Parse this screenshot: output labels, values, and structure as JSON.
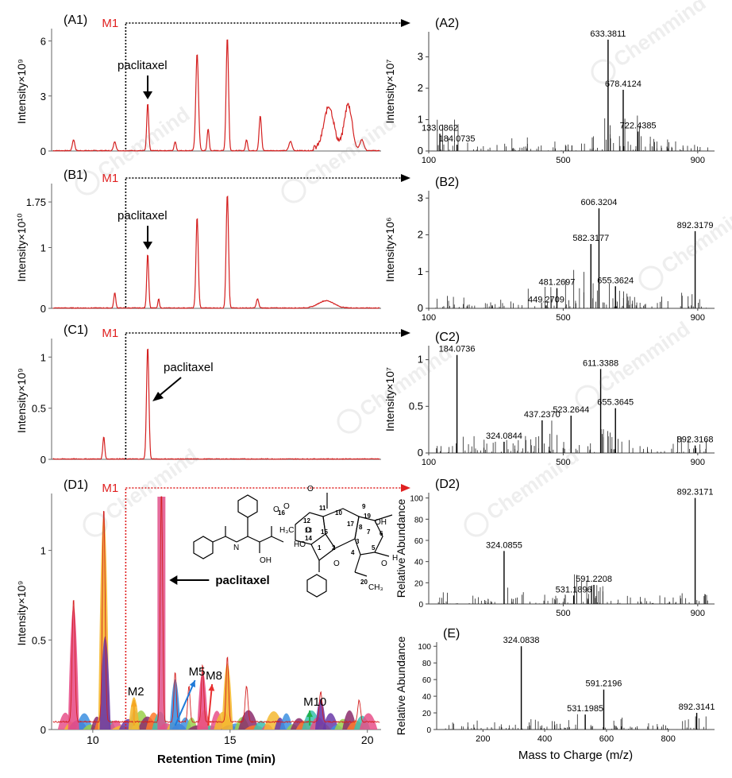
{
  "marker_label": "M1",
  "paclitaxel_label": "paclitaxel",
  "chromatograms": [
    {
      "id": "A1",
      "label": "(A1)",
      "ylabel": "Intensity×10⁹",
      "ylim": [
        0,
        6.5
      ],
      "ticks": [
        0,
        3,
        6
      ],
      "tick_labels": [
        "0",
        "3",
        "6"
      ],
      "color": "#d42020",
      "peaks": [
        [
          9.3,
          0.6,
          0.06
        ],
        [
          10.8,
          0.5,
          0.06
        ],
        [
          12.0,
          2.6,
          0.05
        ],
        [
          13.0,
          0.5,
          0.05
        ],
        [
          13.8,
          5.3,
          0.07
        ],
        [
          14.2,
          1.2,
          0.05
        ],
        [
          14.9,
          6.2,
          0.06
        ],
        [
          15.6,
          0.6,
          0.05
        ],
        [
          16.1,
          1.9,
          0.06
        ],
        [
          17.2,
          0.5,
          0.08
        ],
        [
          18.6,
          2.3,
          0.25
        ],
        [
          19.3,
          2.4,
          0.2
        ],
        [
          19.8,
          0.6,
          0.1
        ]
      ],
      "paclitaxel_rt": 12.0,
      "arrow_style": "down",
      "show_xaxis": false
    },
    {
      "id": "B1",
      "label": "(B1)",
      "ylabel": "Intensity×10¹⁰",
      "ylim": [
        0,
        2
      ],
      "ticks": [
        0,
        1,
        1.75
      ],
      "tick_labels": [
        "0",
        "1",
        "1.75"
      ],
      "color": "#d42020",
      "peaks": [
        [
          10.8,
          0.25,
          0.05
        ],
        [
          12.0,
          0.9,
          0.05
        ],
        [
          12.4,
          0.15,
          0.04
        ],
        [
          13.8,
          1.5,
          0.06
        ],
        [
          14.9,
          1.88,
          0.06
        ],
        [
          16.0,
          0.15,
          0.06
        ],
        [
          18.5,
          0.12,
          0.4
        ]
      ],
      "paclitaxel_rt": 12.0,
      "arrow_style": "down",
      "show_xaxis": false
    },
    {
      "id": "C1",
      "label": "(C1)",
      "ylabel": "Intensity×10⁹",
      "ylim": [
        0,
        1.15
      ],
      "ticks": [
        0,
        0.5,
        1
      ],
      "tick_labels": [
        "0",
        "0.5",
        "1"
      ],
      "color": "#d42020",
      "peaks": [
        [
          10.4,
          0.22,
          0.05
        ],
        [
          12.0,
          1.1,
          0.06
        ]
      ],
      "paclitaxel_rt": 12.0,
      "arrow_style": "diag",
      "show_xaxis": false
    },
    {
      "id": "D1",
      "label": "(D1)",
      "ylabel": "Intensity×10⁹",
      "ylim": [
        0,
        1.3
      ],
      "ticks": [
        0,
        0.5,
        1
      ],
      "tick_labels": [
        "0",
        "0.5",
        "1"
      ],
      "color": "#d42020",
      "peaks": [
        [
          9.3,
          0.69,
          0.07
        ],
        [
          10.4,
          1.2,
          0.07
        ],
        [
          12.5,
          1.3,
          0.06
        ],
        [
          13.0,
          0.28,
          0.06
        ],
        [
          13.5,
          0.2,
          0.06
        ],
        [
          14.0,
          0.32,
          0.06
        ],
        [
          14.9,
          0.37,
          0.06
        ],
        [
          15.6,
          0.2,
          0.07
        ],
        [
          18.3,
          0.17,
          0.07
        ],
        [
          19.7,
          0.12,
          0.07
        ]
      ],
      "paclitaxel_rt": 12.5,
      "arrow_style": "left",
      "show_xaxis": true,
      "xlabel": "Retention Time (min)",
      "xticks": [
        10,
        15,
        20
      ],
      "metabolites": [
        {
          "name": "M2",
          "rt": 11.5,
          "color": "#f5a623"
        },
        {
          "name": "M5",
          "rt": 13.0,
          "color": "#1e7ad8"
        },
        {
          "name": "M8",
          "rt": 14.2,
          "color": "#e83030"
        },
        {
          "name": "M10",
          "rt": 17.9,
          "color": "#20b04a"
        }
      ]
    }
  ],
  "chart_data": [
    {
      "type": "line",
      "panel": "A2",
      "label": "(A2)",
      "ylabel": "Intensity×10⁷",
      "xlim": [
        100,
        950
      ],
      "ylim": [
        0,
        3.8
      ],
      "yticks": [
        0,
        1,
        2,
        3
      ],
      "xticks": [
        100,
        500,
        900
      ],
      "labeled_peaks": [
        {
          "mz": 133.0862,
          "label": "133.0862",
          "y": 0.55
        },
        {
          "mz": 184.0735,
          "label": "184.0735",
          "y": 0.2
        },
        {
          "mz": 633.3811,
          "label": "633.3811",
          "y": 3.55
        },
        {
          "mz": 678.4124,
          "label": "678.4124",
          "y": 1.95
        },
        {
          "mz": 722.4385,
          "label": "722.4385",
          "y": 0.62
        }
      ]
    },
    {
      "type": "line",
      "panel": "B2",
      "label": "(B2)",
      "ylabel": "Intensity×10⁶",
      "xlim": [
        100,
        950
      ],
      "ylim": [
        0,
        3.2
      ],
      "yticks": [
        0,
        1,
        2,
        3
      ],
      "xticks": [
        100,
        500,
        900
      ],
      "labeled_peaks": [
        {
          "mz": 449.2709,
          "label": "449.2709",
          "y": 0.08
        },
        {
          "mz": 481.2697,
          "label": "481.2697",
          "y": 0.55
        },
        {
          "mz": 582.3177,
          "label": "582.3177",
          "y": 1.75
        },
        {
          "mz": 606.3204,
          "label": "606.3204",
          "y": 2.72
        },
        {
          "mz": 655.3624,
          "label": "655.3624",
          "y": 0.6
        },
        {
          "mz": 892.3179,
          "label": "892.3179",
          "y": 2.1
        }
      ]
    },
    {
      "type": "line",
      "panel": "C2",
      "label": "(C2)",
      "ylabel": "Intensity×10⁷",
      "xlim": [
        100,
        950
      ],
      "ylim": [
        0,
        1.15
      ],
      "yticks": [
        0,
        0.5,
        1
      ],
      "xticks": [
        100,
        500,
        900
      ],
      "labeled_peaks": [
        {
          "mz": 184.0736,
          "label": "184.0736",
          "y": 1.05
        },
        {
          "mz": 324.0844,
          "label": "324.0844",
          "y": 0.12
        },
        {
          "mz": 437.237,
          "label": "437.2370",
          "y": 0.35
        },
        {
          "mz": 523.2644,
          "label": "523.2644",
          "y": 0.4
        },
        {
          "mz": 611.3388,
          "label": "611.3388",
          "y": 0.9
        },
        {
          "mz": 655.3645,
          "label": "655.3645",
          "y": 0.48
        },
        {
          "mz": 892.3168,
          "label": "892.3168",
          "y": 0.08
        }
      ]
    },
    {
      "type": "line",
      "panel": "D2",
      "label": "(D2)",
      "ylabel": "Relative Abundance",
      "xlim": [
        100,
        950
      ],
      "ylim": [
        0,
        105
      ],
      "yticks": [
        0,
        20,
        40,
        60,
        80,
        100
      ],
      "xticks": [
        500,
        900
      ],
      "labeled_peaks": [
        {
          "mz": 324.0855,
          "label": "324.0855",
          "y": 50
        },
        {
          "mz": 531.1896,
          "label": "531.1896",
          "y": 8
        },
        {
          "mz": 591.2208,
          "label": "591.2208",
          "y": 18
        },
        {
          "mz": 892.3171,
          "label": "892.3171",
          "y": 100
        }
      ]
    },
    {
      "type": "line",
      "panel": "E",
      "label": "(E)",
      "ylabel": "Relative Abundance",
      "xlabel": "Mass to Charge (m/z)",
      "xlim": [
        50,
        950
      ],
      "ylim": [
        0,
        105
      ],
      "yticks": [
        0,
        20,
        40,
        60,
        80,
        100
      ],
      "xticks": [
        200,
        400,
        600,
        800
      ],
      "labeled_peaks": [
        {
          "mz": 324.0838,
          "label": "324.0838",
          "y": 100
        },
        {
          "mz": 531.1985,
          "label": "531.1985",
          "y": 18
        },
        {
          "mz": 591.2196,
          "label": "591.2196",
          "y": 48
        },
        {
          "mz": 892.3141,
          "label": "892.3141",
          "y": 20
        }
      ]
    }
  ],
  "structure_labels": [
    "H₃C",
    "O",
    "O",
    "O",
    "O",
    "OH",
    "OH",
    "HO",
    "H",
    "N",
    "16",
    "11",
    "10",
    "9",
    "19",
    "7",
    "6",
    "5",
    "12",
    "13",
    "14",
    "15",
    "1",
    "2",
    "3",
    "4",
    "20",
    "17",
    "8",
    "O",
    "CH₃",
    "O"
  ],
  "watermark": "Chemmind"
}
